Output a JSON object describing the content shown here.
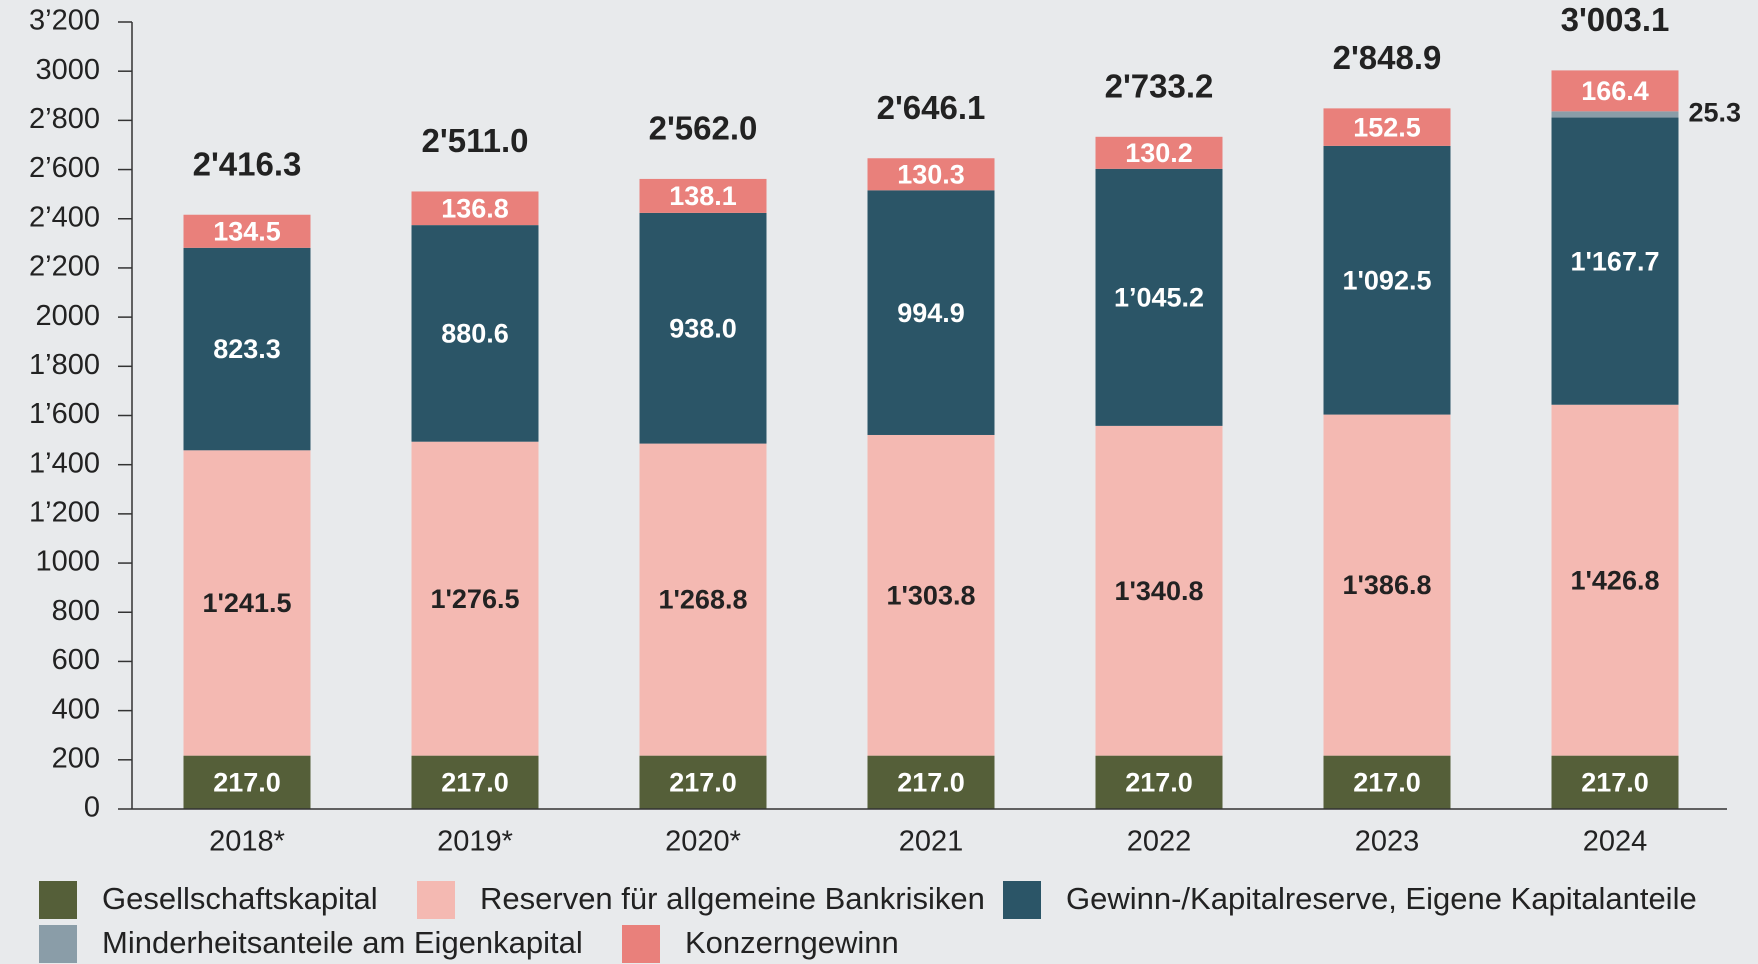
{
  "chart_data": {
    "type": "bar",
    "stacked": true,
    "categories": [
      "2018*",
      "2019*",
      "2020*",
      "2021",
      "2022",
      "2023",
      "2024"
    ],
    "series": [
      {
        "name": "Gesellschaftskapital",
        "color": "#555f39",
        "values": [
          217.0,
          217.0,
          217.0,
          217.0,
          217.0,
          217.0,
          217.0
        ],
        "value_labels": [
          "217.0",
          "217.0",
          "217.0",
          "217.0",
          "217.0",
          "217.0",
          "217.0"
        ]
      },
      {
        "name": "Reserven für allgemeine Bankrisiken",
        "color": "#f4b9b2",
        "values": [
          1241.5,
          1276.5,
          1268.8,
          1303.8,
          1340.8,
          1386.8,
          1426.8
        ],
        "value_labels": [
          "1'241.5",
          "1'276.5",
          "1'268.8",
          "1'303.8",
          "1'340.8",
          "1'386.8",
          "1'426.8"
        ]
      },
      {
        "name": "Gewinn-/Kapitalreserve, Eigene Kapitalanteile",
        "color": "#2b5567",
        "values": [
          823.3,
          880.6,
          938.0,
          994.9,
          1045.2,
          1092.5,
          1167.7
        ],
        "value_labels": [
          "823.3",
          "880.6",
          "938.0",
          "994.9",
          "1’045.2",
          "1'092.5",
          "1'167.7"
        ]
      },
      {
        "name": "Minderheitsanteile am Eigenkapital",
        "color": "#8a9da8",
        "values": [
          null,
          null,
          null,
          null,
          null,
          null,
          25.3
        ],
        "value_labels": [
          null,
          null,
          null,
          null,
          null,
          null,
          "25.3"
        ]
      },
      {
        "name": "Konzerngewinn",
        "color": "#e9807b",
        "values": [
          134.5,
          136.8,
          138.1,
          130.3,
          130.2,
          152.5,
          166.4
        ],
        "value_labels": [
          "134.5",
          "136.8",
          "138.1",
          "130.3",
          "130.2",
          "152.5",
          "166.4"
        ]
      }
    ],
    "totals": [
      2416.3,
      2511.0,
      2562.0,
      2646.1,
      2733.2,
      2848.9,
      3003.1
    ],
    "total_labels": [
      "2'416.3",
      "2'511.0",
      "2'562.0",
      "2'646.1",
      "2'733.2",
      "2'848.9",
      "3'003.1"
    ],
    "ylim": [
      0,
      3200
    ],
    "yticks": [
      0,
      200,
      400,
      600,
      800,
      1000,
      {
        "value": 1200,
        "label": "1’200"
      },
      {
        "value": 1400,
        "label": "1’400"
      },
      {
        "value": 1600,
        "label": "1’600"
      },
      {
        "value": 1800,
        "label": "1’800"
      },
      2000,
      {
        "value": 2200,
        "label": "2’200"
      },
      {
        "value": 2400,
        "label": "2’400"
      },
      {
        "value": 2600,
        "label": "2’600"
      },
      {
        "value": 2800,
        "label": "2’800"
      },
      3000,
      {
        "value": 3200,
        "label": "3’200"
      }
    ]
  }
}
